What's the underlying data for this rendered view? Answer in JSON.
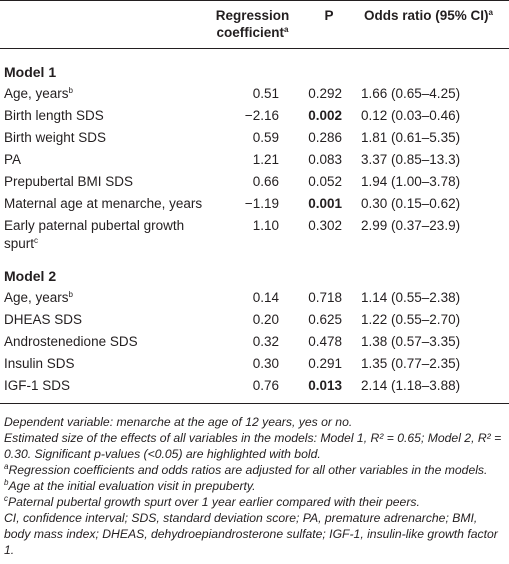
{
  "table": {
    "header": [
      {
        "text": ""
      },
      {
        "text": "Regression coefficient",
        "sup": "a"
      },
      {
        "text": "P"
      },
      {
        "text": "Odds ratio (95% CI)",
        "sup": "a"
      }
    ],
    "sections": [
      {
        "title": "Model 1",
        "rows": [
          {
            "label": "Age, years",
            "sup": "b",
            "coef": "0.51",
            "p": "0.292",
            "or": "1.66 (0.65–4.25)"
          },
          {
            "label": "Birth length SDS",
            "coef": "−2.16",
            "p": "0.002",
            "p_bold": true,
            "or": "0.12 (0.03–0.46)"
          },
          {
            "label": "Birth weight SDS",
            "coef": "0.59",
            "p": "0.286",
            "or": "1.81 (0.61–5.35)"
          },
          {
            "label": "PA",
            "coef": "1.21",
            "p": "0.083",
            "or": "3.37 (0.85–13.3)"
          },
          {
            "label": "Prepubertal BMI SDS",
            "coef": "0.66",
            "p": "0.052",
            "or": "1.94 (1.00–3.78)"
          },
          {
            "label": "Maternal age at menarche, years",
            "coef": "−1.19",
            "p": "0.001",
            "p_bold": true,
            "or": "0.30 (0.15–0.62)"
          },
          {
            "label": "Early paternal pubertal growth spurt",
            "sup": "c",
            "coef": "1.10",
            "p": "0.302",
            "or": "2.99 (0.37–23.9)"
          }
        ]
      },
      {
        "title": "Model 2",
        "rows": [
          {
            "label": "Age, years",
            "sup": "b",
            "coef": "0.14",
            "p": "0.718",
            "or": "1.14 (0.55–2.38)"
          },
          {
            "label": "DHEAS SDS",
            "coef": "0.20",
            "p": "0.625",
            "or": "1.22 (0.55–2.70)"
          },
          {
            "label": "Androstenedione SDS",
            "coef": "0.32",
            "p": "0.478",
            "or": "1.38 (0.57–3.35)"
          },
          {
            "label": "Insulin SDS",
            "coef": "0.30",
            "p": "0.291",
            "or": "1.35 (0.77–2.35)"
          },
          {
            "label": "IGF-1 SDS",
            "coef": "0.76",
            "p": "0.013",
            "p_bold": true,
            "or": "2.14 (1.18–3.88)"
          }
        ]
      }
    ]
  },
  "footnotes": [
    {
      "text": "Dependent variable: menarche at the age of 12 years, yes or no."
    },
    {
      "text": "Estimated size of the effects of all variables in the models: Model 1, R² = 0.65; Model 2, R² = 0.30. Significant p-values (<0.05) are highlighted with bold."
    },
    {
      "sup": "a",
      "text": "Regression coefficients and odds ratios are adjusted for all other variables in the models."
    },
    {
      "sup": "b",
      "text": "Age at the initial evaluation visit in prepuberty."
    },
    {
      "sup": "c",
      "text": "Paternal pubertal growth spurt over 1 year earlier compared with their peers."
    },
    {
      "text": "CI, confidence interval; SDS, standard deviation score; PA, premature adrenarche; BMI, body mass index; DHEAS, dehydroepiandrosterone sulfate; IGF-1, insulin-like growth factor 1."
    }
  ]
}
